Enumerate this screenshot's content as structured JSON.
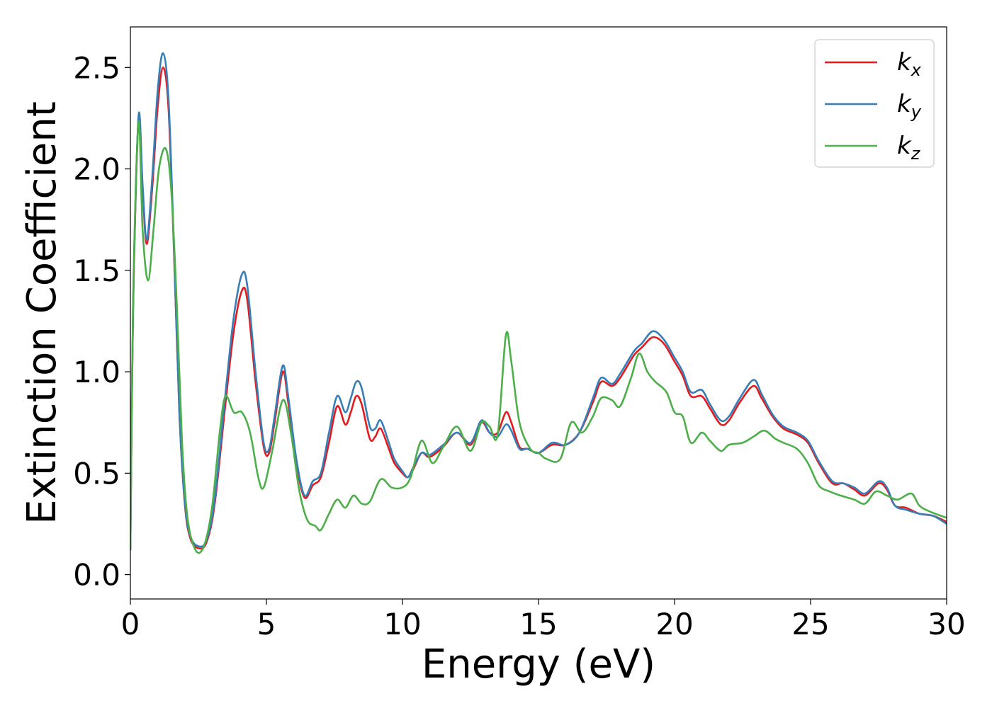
{
  "chart_data": {
    "type": "line",
    "title": "",
    "xlabel": "Energy (eV)",
    "ylabel": "Extinction Coefficient",
    "xlim": [
      0,
      30
    ],
    "ylim": [
      -0.12,
      2.7
    ],
    "xticks": [
      0,
      5,
      10,
      15,
      20,
      25,
      30
    ],
    "xtick_labels": [
      "0",
      "5",
      "10",
      "15",
      "20",
      "25",
      "30"
    ],
    "yticks": [
      0.0,
      0.5,
      1.0,
      1.5,
      2.0,
      2.5
    ],
    "ytick_labels": [
      "0.0",
      "0.5",
      "1.0",
      "1.5",
      "2.0",
      "2.5"
    ],
    "grid": false,
    "legend_position": "top-right",
    "series": [
      {
        "name": "k_x",
        "legend_base": "k",
        "legend_sub": "x",
        "color": "#e41a1c",
        "points": [
          [
            0,
            0.12
          ],
          [
            0.1,
            1.3
          ],
          [
            0.3,
            2.25
          ],
          [
            0.45,
            1.9
          ],
          [
            0.6,
            1.63
          ],
          [
            0.8,
            1.9
          ],
          [
            1.0,
            2.3
          ],
          [
            1.2,
            2.5
          ],
          [
            1.4,
            2.3
          ],
          [
            1.6,
            1.6
          ],
          [
            1.8,
            0.8
          ],
          [
            2.0,
            0.35
          ],
          [
            2.2,
            0.18
          ],
          [
            2.5,
            0.13
          ],
          [
            2.8,
            0.16
          ],
          [
            3.1,
            0.35
          ],
          [
            3.5,
            0.85
          ],
          [
            3.8,
            1.2
          ],
          [
            4.1,
            1.4
          ],
          [
            4.3,
            1.35
          ],
          [
            4.6,
            0.95
          ],
          [
            4.9,
            0.63
          ],
          [
            5.1,
            0.6
          ],
          [
            5.3,
            0.75
          ],
          [
            5.6,
            1.0
          ],
          [
            5.8,
            0.85
          ],
          [
            6.1,
            0.55
          ],
          [
            6.4,
            0.38
          ],
          [
            6.7,
            0.44
          ],
          [
            7.0,
            0.48
          ],
          [
            7.3,
            0.65
          ],
          [
            7.6,
            0.83
          ],
          [
            7.9,
            0.74
          ],
          [
            8.1,
            0.8
          ],
          [
            8.3,
            0.88
          ],
          [
            8.5,
            0.84
          ],
          [
            8.8,
            0.67
          ],
          [
            9.0,
            0.68
          ],
          [
            9.2,
            0.72
          ],
          [
            9.5,
            0.62
          ],
          [
            9.7,
            0.55
          ],
          [
            10.0,
            0.5
          ],
          [
            10.2,
            0.48
          ],
          [
            10.4,
            0.52
          ],
          [
            10.7,
            0.6
          ],
          [
            11.0,
            0.58
          ],
          [
            11.5,
            0.63
          ],
          [
            12.0,
            0.7
          ],
          [
            12.5,
            0.64
          ],
          [
            12.9,
            0.75
          ],
          [
            13.2,
            0.7
          ],
          [
            13.5,
            0.7
          ],
          [
            13.8,
            0.8
          ],
          [
            14.0,
            0.75
          ],
          [
            14.3,
            0.63
          ],
          [
            14.6,
            0.62
          ],
          [
            15.0,
            0.6
          ],
          [
            15.5,
            0.64
          ],
          [
            16.0,
            0.64
          ],
          [
            16.5,
            0.7
          ],
          [
            17.0,
            0.85
          ],
          [
            17.3,
            0.95
          ],
          [
            17.7,
            0.93
          ],
          [
            18.0,
            0.97
          ],
          [
            18.5,
            1.08
          ],
          [
            18.8,
            1.12
          ],
          [
            19.2,
            1.17
          ],
          [
            19.6,
            1.14
          ],
          [
            20.0,
            1.05
          ],
          [
            20.3,
            0.98
          ],
          [
            20.6,
            0.88
          ],
          [
            21.0,
            0.88
          ],
          [
            21.3,
            0.82
          ],
          [
            21.7,
            0.74
          ],
          [
            22.0,
            0.76
          ],
          [
            22.4,
            0.85
          ],
          [
            22.9,
            0.93
          ],
          [
            23.2,
            0.87
          ],
          [
            23.6,
            0.78
          ],
          [
            24.0,
            0.72
          ],
          [
            24.5,
            0.69
          ],
          [
            24.9,
            0.65
          ],
          [
            25.3,
            0.55
          ],
          [
            25.8,
            0.45
          ],
          [
            26.2,
            0.45
          ],
          [
            26.6,
            0.42
          ],
          [
            27.0,
            0.39
          ],
          [
            27.5,
            0.45
          ],
          [
            27.8,
            0.42
          ],
          [
            28.1,
            0.34
          ],
          [
            28.5,
            0.33
          ],
          [
            29.0,
            0.3
          ],
          [
            29.5,
            0.29
          ],
          [
            30.0,
            0.26
          ]
        ]
      },
      {
        "name": "k_y",
        "legend_base": "k",
        "legend_sub": "y",
        "color": "#377eb8",
        "points": [
          [
            0,
            0.12
          ],
          [
            0.1,
            1.32
          ],
          [
            0.3,
            2.26
          ],
          [
            0.45,
            1.92
          ],
          [
            0.6,
            1.65
          ],
          [
            0.8,
            1.95
          ],
          [
            1.0,
            2.38
          ],
          [
            1.2,
            2.57
          ],
          [
            1.4,
            2.35
          ],
          [
            1.6,
            1.62
          ],
          [
            1.8,
            0.8
          ],
          [
            2.0,
            0.36
          ],
          [
            2.2,
            0.19
          ],
          [
            2.5,
            0.14
          ],
          [
            2.8,
            0.17
          ],
          [
            3.1,
            0.37
          ],
          [
            3.5,
            0.9
          ],
          [
            3.8,
            1.27
          ],
          [
            4.1,
            1.48
          ],
          [
            4.3,
            1.42
          ],
          [
            4.6,
            1.0
          ],
          [
            4.9,
            0.65
          ],
          [
            5.1,
            0.62
          ],
          [
            5.3,
            0.78
          ],
          [
            5.6,
            1.03
          ],
          [
            5.8,
            0.88
          ],
          [
            6.1,
            0.57
          ],
          [
            6.4,
            0.39
          ],
          [
            6.7,
            0.46
          ],
          [
            7.0,
            0.5
          ],
          [
            7.3,
            0.7
          ],
          [
            7.6,
            0.88
          ],
          [
            7.9,
            0.8
          ],
          [
            8.1,
            0.87
          ],
          [
            8.3,
            0.95
          ],
          [
            8.5,
            0.92
          ],
          [
            8.8,
            0.73
          ],
          [
            9.0,
            0.72
          ],
          [
            9.2,
            0.76
          ],
          [
            9.5,
            0.65
          ],
          [
            9.7,
            0.57
          ],
          [
            10.0,
            0.51
          ],
          [
            10.2,
            0.48
          ],
          [
            10.4,
            0.53
          ],
          [
            10.7,
            0.6
          ],
          [
            11.0,
            0.59
          ],
          [
            11.5,
            0.64
          ],
          [
            12.0,
            0.7
          ],
          [
            12.5,
            0.65
          ],
          [
            12.9,
            0.76
          ],
          [
            13.2,
            0.7
          ],
          [
            13.5,
            0.68
          ],
          [
            13.8,
            0.74
          ],
          [
            14.0,
            0.71
          ],
          [
            14.3,
            0.62
          ],
          [
            14.6,
            0.62
          ],
          [
            15.0,
            0.6
          ],
          [
            15.5,
            0.65
          ],
          [
            16.0,
            0.64
          ],
          [
            16.5,
            0.7
          ],
          [
            17.0,
            0.87
          ],
          [
            17.3,
            0.97
          ],
          [
            17.7,
            0.94
          ],
          [
            18.0,
            0.99
          ],
          [
            18.5,
            1.1
          ],
          [
            18.8,
            1.14
          ],
          [
            19.2,
            1.2
          ],
          [
            19.6,
            1.16
          ],
          [
            20.0,
            1.07
          ],
          [
            20.3,
            1.0
          ],
          [
            20.6,
            0.9
          ],
          [
            21.0,
            0.91
          ],
          [
            21.3,
            0.84
          ],
          [
            21.7,
            0.76
          ],
          [
            22.0,
            0.78
          ],
          [
            22.4,
            0.87
          ],
          [
            22.9,
            0.96
          ],
          [
            23.2,
            0.89
          ],
          [
            23.6,
            0.79
          ],
          [
            24.0,
            0.73
          ],
          [
            24.5,
            0.7
          ],
          [
            24.9,
            0.66
          ],
          [
            25.3,
            0.56
          ],
          [
            25.8,
            0.46
          ],
          [
            26.2,
            0.45
          ],
          [
            26.6,
            0.43
          ],
          [
            27.0,
            0.4
          ],
          [
            27.5,
            0.46
          ],
          [
            27.8,
            0.43
          ],
          [
            28.1,
            0.34
          ],
          [
            28.5,
            0.32
          ],
          [
            29.0,
            0.3
          ],
          [
            29.5,
            0.29
          ],
          [
            30.0,
            0.25
          ]
        ]
      },
      {
        "name": "k_z",
        "legend_base": "k",
        "legend_sub": "z",
        "color": "#4daf4a",
        "points": [
          [
            0,
            0.12
          ],
          [
            0.1,
            1.35
          ],
          [
            0.3,
            2.23
          ],
          [
            0.45,
            1.7
          ],
          [
            0.65,
            1.45
          ],
          [
            0.85,
            1.7
          ],
          [
            1.05,
            2.0
          ],
          [
            1.3,
            2.1
          ],
          [
            1.5,
            1.9
          ],
          [
            1.7,
            1.35
          ],
          [
            1.9,
            0.65
          ],
          [
            2.1,
            0.28
          ],
          [
            2.4,
            0.12
          ],
          [
            2.7,
            0.14
          ],
          [
            3.0,
            0.33
          ],
          [
            3.3,
            0.72
          ],
          [
            3.5,
            0.88
          ],
          [
            3.8,
            0.8
          ],
          [
            4.1,
            0.8
          ],
          [
            4.4,
            0.7
          ],
          [
            4.7,
            0.48
          ],
          [
            4.9,
            0.43
          ],
          [
            5.2,
            0.6
          ],
          [
            5.6,
            0.86
          ],
          [
            5.9,
            0.7
          ],
          [
            6.2,
            0.42
          ],
          [
            6.5,
            0.27
          ],
          [
            6.8,
            0.24
          ],
          [
            7.0,
            0.22
          ],
          [
            7.3,
            0.3
          ],
          [
            7.6,
            0.37
          ],
          [
            7.9,
            0.33
          ],
          [
            8.2,
            0.39
          ],
          [
            8.5,
            0.35
          ],
          [
            8.8,
            0.36
          ],
          [
            9.2,
            0.47
          ],
          [
            9.6,
            0.43
          ],
          [
            10.0,
            0.43
          ],
          [
            10.3,
            0.48
          ],
          [
            10.7,
            0.66
          ],
          [
            11.1,
            0.55
          ],
          [
            11.5,
            0.63
          ],
          [
            12.0,
            0.73
          ],
          [
            12.5,
            0.61
          ],
          [
            12.9,
            0.75
          ],
          [
            13.2,
            0.73
          ],
          [
            13.5,
            0.69
          ],
          [
            13.8,
            1.18
          ],
          [
            14.0,
            1.05
          ],
          [
            14.3,
            0.75
          ],
          [
            14.7,
            0.62
          ],
          [
            15.0,
            0.6
          ],
          [
            15.3,
            0.57
          ],
          [
            15.8,
            0.57
          ],
          [
            16.2,
            0.75
          ],
          [
            16.6,
            0.7
          ],
          [
            17.0,
            0.78
          ],
          [
            17.3,
            0.87
          ],
          [
            17.7,
            0.86
          ],
          [
            18.0,
            0.83
          ],
          [
            18.4,
            0.97
          ],
          [
            18.7,
            1.09
          ],
          [
            19.0,
            1.0
          ],
          [
            19.3,
            0.95
          ],
          [
            19.7,
            0.9
          ],
          [
            20.0,
            0.8
          ],
          [
            20.3,
            0.78
          ],
          [
            20.6,
            0.65
          ],
          [
            21.0,
            0.7
          ],
          [
            21.3,
            0.66
          ],
          [
            21.7,
            0.61
          ],
          [
            22.0,
            0.64
          ],
          [
            22.5,
            0.65
          ],
          [
            22.9,
            0.68
          ],
          [
            23.3,
            0.71
          ],
          [
            23.7,
            0.67
          ],
          [
            24.0,
            0.65
          ],
          [
            24.5,
            0.62
          ],
          [
            24.9,
            0.55
          ],
          [
            25.3,
            0.44
          ],
          [
            25.7,
            0.41
          ],
          [
            26.1,
            0.39
          ],
          [
            26.6,
            0.37
          ],
          [
            27.0,
            0.35
          ],
          [
            27.4,
            0.41
          ],
          [
            27.8,
            0.39
          ],
          [
            28.2,
            0.37
          ],
          [
            28.7,
            0.4
          ],
          [
            29.0,
            0.34
          ],
          [
            29.4,
            0.31
          ],
          [
            30.0,
            0.28
          ]
        ]
      }
    ]
  }
}
